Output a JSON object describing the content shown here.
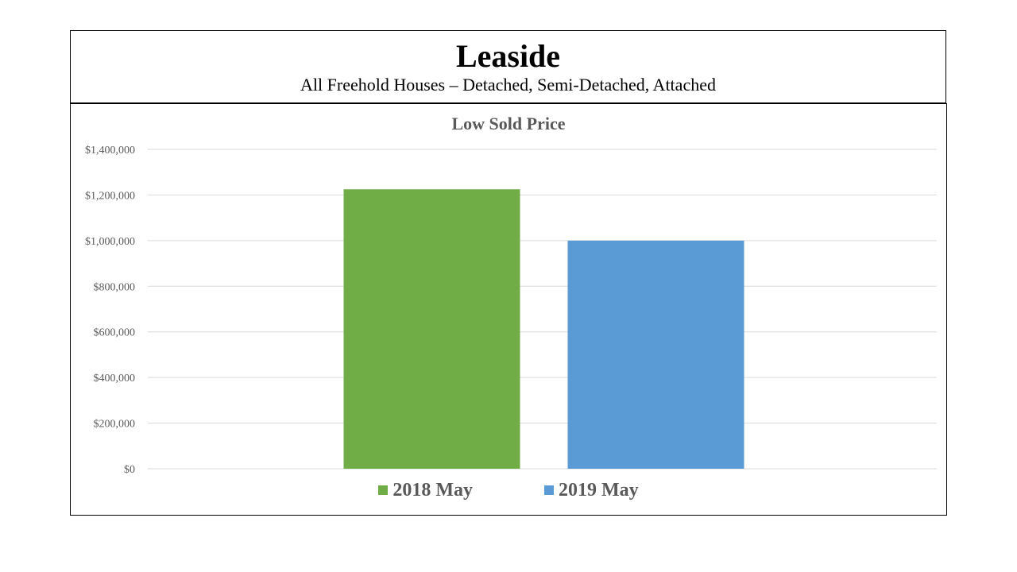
{
  "header": {
    "title": "Leaside",
    "subtitle": "All Freehold Houses – Detached, Semi-Detached, Attached"
  },
  "chart_data": {
    "type": "bar",
    "title": "Low Sold Price",
    "xlabel": "",
    "ylabel": "",
    "ylim": [
      0,
      1400000
    ],
    "y_ticks": [
      0,
      200000,
      400000,
      600000,
      800000,
      1000000,
      1200000,
      1400000
    ],
    "y_tick_labels": [
      "$0",
      "$200,000",
      "$400,000",
      "$600,000",
      "$800,000",
      "$1,000,000",
      "$1,200,000",
      "$1,400,000"
    ],
    "grid": true,
    "legend_position": "bottom",
    "series": [
      {
        "name": "2018 May",
        "values": [
          1225000
        ],
        "color": "#70ad47"
      },
      {
        "name": "2019 May",
        "values": [
          1000000
        ],
        "color": "#5b9bd5"
      }
    ]
  }
}
